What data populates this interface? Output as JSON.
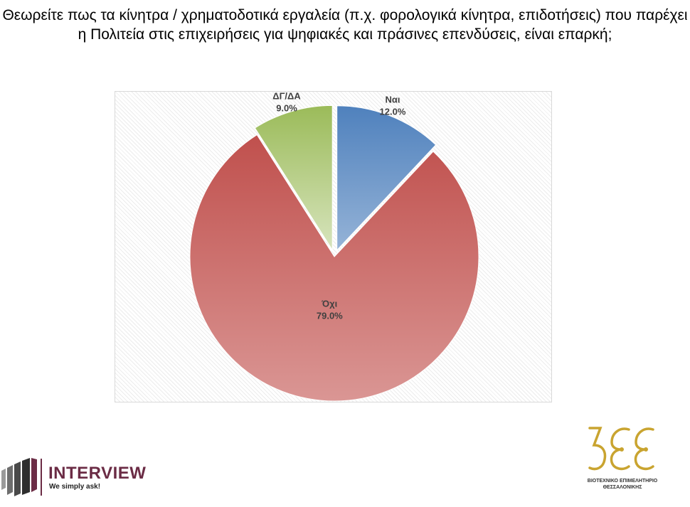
{
  "title": "Θεωρείτε πως τα κίνητρα / χρηματοδοτικά εργαλεία (π.χ. φορολογικά κίνητρα, επιδοτήσεις) που παρέχει η Πολιτεία στις επιχειρήσεις για ψηφιακές και πράσινες επενδύσεις, είναι επαρκή;",
  "chart_data": {
    "type": "pie",
    "title": "",
    "slices": [
      {
        "label": "Ναι",
        "value": 12.0,
        "value_label": "12.0%",
        "color_top": "#4f81bd",
        "color_bottom": "#95b3d7"
      },
      {
        "label": "Όχι",
        "value": 79.0,
        "value_label": "79.0%",
        "color_top": "#c0504d",
        "color_bottom": "#da9694"
      },
      {
        "label": "ΔΓ/ΔΑ",
        "value": 9.0,
        "value_label": "9.0%",
        "color_top": "#9bbb59",
        "color_bottom": "#d7e4bd"
      }
    ],
    "legend": "none",
    "start": "top, clockwise"
  },
  "logos": {
    "interview": {
      "name": "INTERVIEW",
      "tagline": "We simply ask!",
      "color": "#6b2c45"
    },
    "bee": {
      "line1": "ΒΙΟΤΕΧΝΙΚΟ ΕΠΙΜΕΛΗΤΗΡΙΟ",
      "line2": "ΘΕΣΣΑΛΟΝΙΚΗΣ",
      "color": "#c9a430"
    }
  }
}
